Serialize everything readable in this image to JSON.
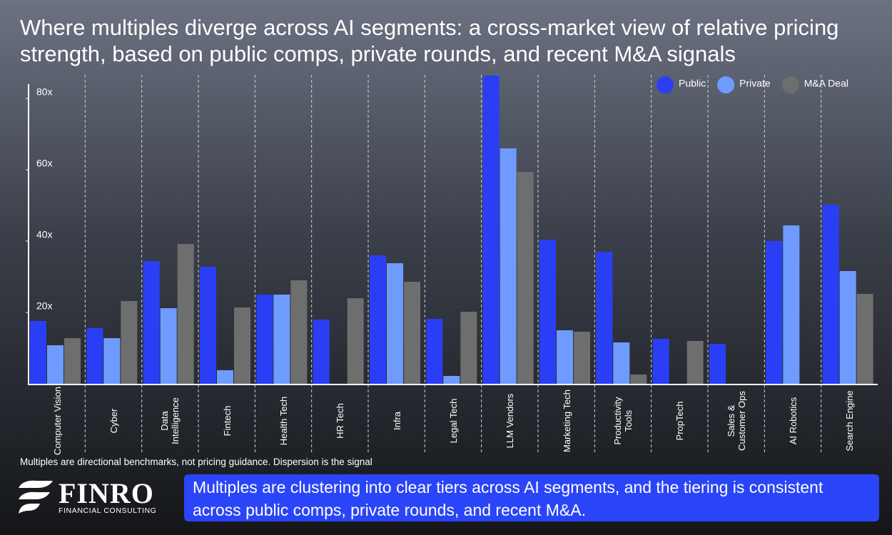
{
  "chart_data": {
    "type": "bar",
    "title": "Where multiples diverge across AI segments: a cross-market view of relative pricing strength, based on public comps, private rounds, and recent M&A signals",
    "categories": [
      "Computer Vision",
      "Cyber",
      "Data Intelligence",
      "Fintech",
      "Health Tech",
      "HR Tech",
      "Infra",
      "Legal Tech",
      "LLM Vendors",
      "Marketing Tech",
      "Productivity Tools",
      "PropTech",
      "Sales & Customer Ops",
      "AI Robotics",
      "Search Engine"
    ],
    "series": [
      {
        "name": "Public",
        "color": "#2a3ff5",
        "values": [
          17.6,
          15.6,
          34.4,
          32.8,
          25,
          18,
          36,
          18.2,
          86.4,
          40.4,
          37,
          12.6,
          11.2,
          40,
          50.2
        ]
      },
      {
        "name": "Private",
        "color": "#6f9bff",
        "values": [
          10.8,
          12.8,
          21.2,
          3.8,
          25,
          null,
          33.8,
          2.2,
          66,
          15,
          11.6,
          null,
          null,
          44.4,
          31.6
        ]
      },
      {
        "name": "M&A Deal",
        "color": "#6e6e6e",
        "values": [
          12.8,
          23.2,
          39.2,
          21.4,
          29,
          24,
          28.6,
          20.2,
          59.4,
          14.6,
          2.6,
          12,
          null,
          null,
          25.2
        ]
      }
    ],
    "ylim": [
      0,
      88
    ],
    "yticks": [
      {
        "value": 20,
        "label": "20x"
      },
      {
        "value": 40,
        "label": "40x"
      },
      {
        "value": 60,
        "label": "60x"
      },
      {
        "value": 80,
        "label": "80x"
      }
    ],
    "legend": "top-right",
    "note": "Multiples are directional benchmarks, not pricing guidance. Dispersion is the signal"
  },
  "branding": {
    "name": "FINRO",
    "tagline": "FINANCIAL CONSULTING"
  },
  "callout": "Multiples are clustering into clear tiers across AI segments, and the tiering is consistent across public comps, private rounds, and recent M&A."
}
